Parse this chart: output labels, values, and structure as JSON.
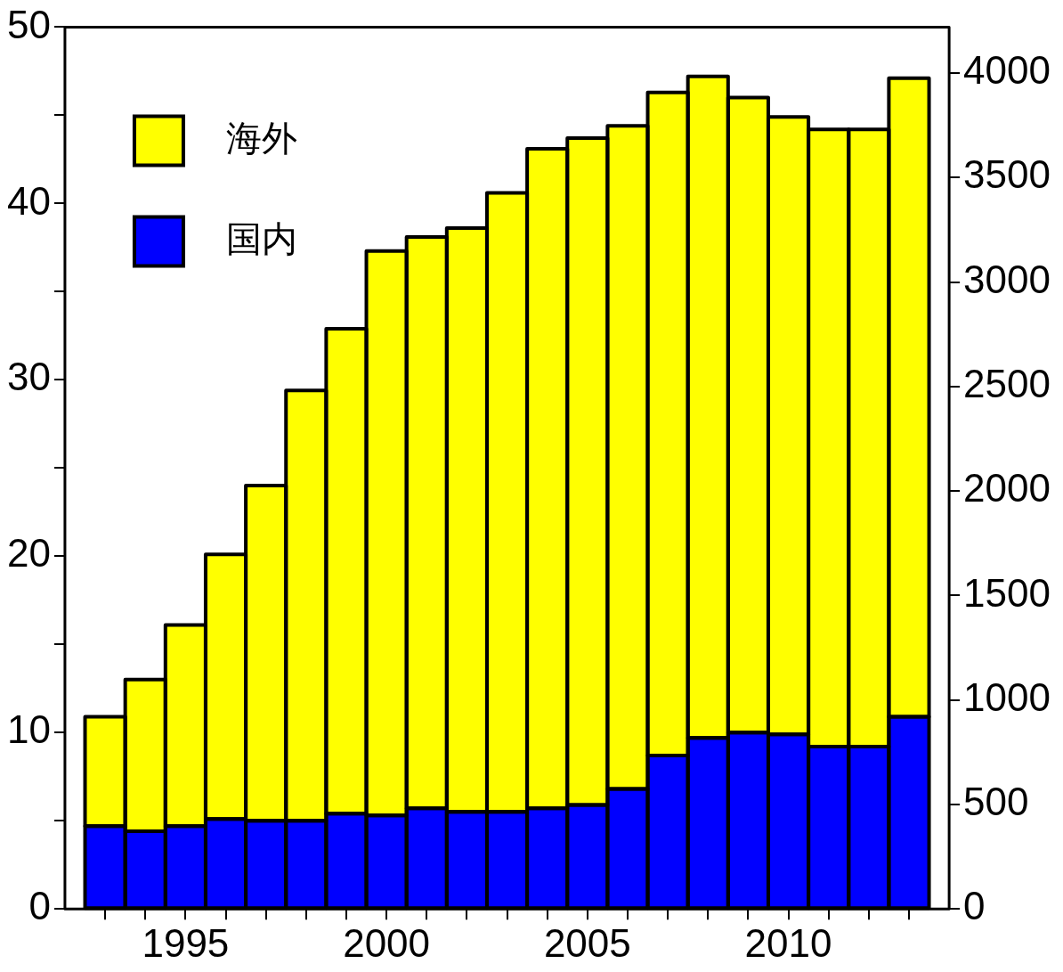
{
  "chart_data": {
    "type": "bar",
    "stacked": true,
    "x": [
      1993,
      1994,
      1995,
      1996,
      1997,
      1998,
      1999,
      2000,
      2001,
      2002,
      2003,
      2004,
      2005,
      2006,
      2007,
      2008,
      2009,
      2010,
      2011,
      2012,
      2013
    ],
    "xlim": [
      1992,
      2014
    ],
    "xticks": [
      {
        "value": 1993,
        "label": null
      },
      {
        "value": 1994,
        "label": null
      },
      1995,
      {
        "value": 1996,
        "label": null
      },
      {
        "value": 1997,
        "label": null
      },
      {
        "value": 1998,
        "label": null
      },
      {
        "value": 1999,
        "label": null
      },
      2000,
      {
        "value": 2001,
        "label": null
      },
      {
        "value": 2002,
        "label": null
      },
      {
        "value": 2003,
        "label": null
      },
      {
        "value": 2004,
        "label": null
      },
      2005,
      {
        "value": 2006,
        "label": null
      },
      {
        "value": 2007,
        "label": null
      },
      {
        "value": 2008,
        "label": null
      },
      {
        "value": 2009,
        "label": null
      },
      2010,
      {
        "value": 2011,
        "label": null
      },
      {
        "value": 2012,
        "label": null
      },
      {
        "value": 2013,
        "label": null
      }
    ],
    "ylim": [
      0,
      50
    ],
    "yticks": [
      0,
      {
        "value": 5,
        "label": null
      },
      10,
      {
        "value": 15,
        "label": null
      },
      20,
      {
        "value": 25,
        "label": null
      },
      30,
      {
        "value": 35,
        "label": null
      },
      40,
      {
        "value": 45,
        "label": null
      },
      50
    ],
    "y2lim": [
      0,
      4220
    ],
    "y2ticks": [
      0,
      500,
      1000,
      1500,
      2000,
      2500,
      3000,
      3500,
      4000
    ],
    "legend": "top left",
    "series": [
      {
        "name": "国内",
        "color": "#0000ff",
        "values": [
          4.7,
          4.4,
          4.7,
          5.1,
          5.0,
          5.0,
          5.4,
          5.3,
          5.7,
          5.5,
          5.5,
          5.7,
          5.9,
          6.8,
          8.7,
          9.7,
          10.0,
          9.9,
          9.2,
          9.2,
          10.9
        ]
      },
      {
        "name": "海外",
        "color": "#ffff00",
        "values": [
          6.2,
          8.6,
          11.4,
          15.0,
          19.0,
          24.4,
          27.5,
          32.0,
          32.4,
          33.1,
          35.1,
          37.4,
          37.8,
          37.6,
          37.6,
          37.5,
          36.0,
          35.0,
          35.0,
          35.0,
          36.2
        ]
      }
    ]
  }
}
